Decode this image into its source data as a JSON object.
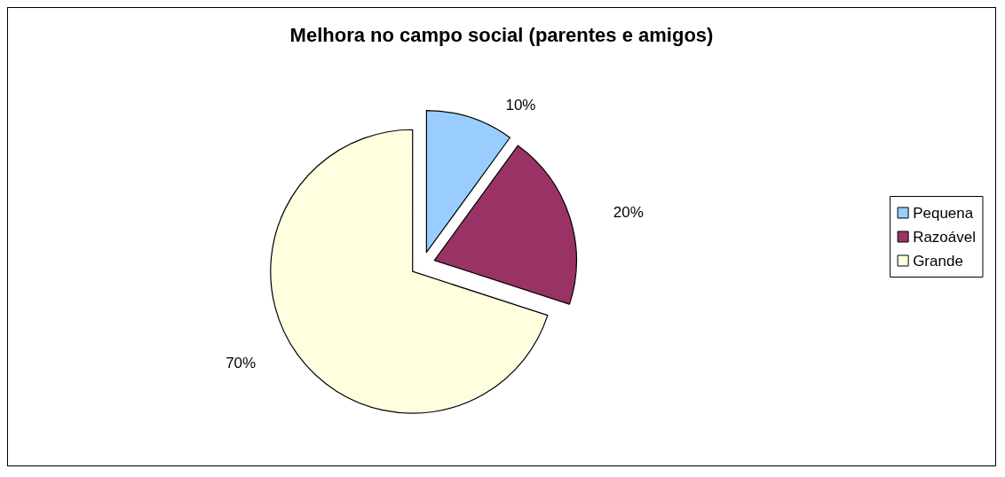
{
  "chart_data": {
    "type": "pie",
    "title": "Melhora no campo social (parentes e amigos)",
    "categories": [
      "Pequena",
      "Razoável",
      "Grande"
    ],
    "values": [
      10,
      20,
      70
    ],
    "colors": [
      "#99ccff",
      "#993366",
      "#ffffe0"
    ],
    "value_labels": [
      "10%",
      "20%",
      "70%"
    ],
    "legend": "right"
  }
}
